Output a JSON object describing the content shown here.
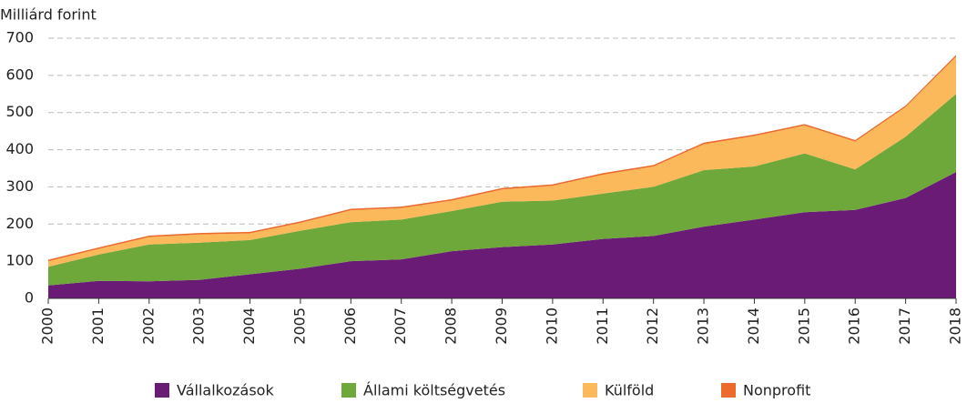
{
  "chart_data": {
    "type": "stacked_area",
    "y_axis_label": "Milliárd forint",
    "categories": [
      "2000",
      "2001",
      "2002",
      "2003",
      "2004",
      "2005",
      "2006",
      "2007",
      "2008",
      "2009",
      "2010",
      "2011",
      "2012",
      "2013",
      "2014",
      "2015",
      "2016",
      "2017",
      "2018"
    ],
    "series": [
      {
        "name": "Vállalkozások",
        "color": "#6a1b76",
        "values": [
          35,
          47,
          46,
          50,
          65,
          80,
          100,
          105,
          127,
          138,
          145,
          160,
          168,
          193,
          212,
          232,
          238,
          270,
          340
        ]
      },
      {
        "name": "Állami költségvetés",
        "color": "#6fa83a",
        "values": [
          50,
          71,
          99,
          100,
          92,
          102,
          105,
          107,
          108,
          122,
          118,
          122,
          132,
          152,
          143,
          158,
          109,
          165,
          210
        ]
      },
      {
        "name": "Külföld",
        "color": "#fbb95c",
        "values": [
          15,
          15,
          20,
          22,
          18,
          21,
          32,
          31,
          28,
          33,
          40,
          51,
          55,
          70,
          82,
          75,
          75,
          80,
          100
        ]
      },
      {
        "name": "Nonprofit",
        "color": "#ec6a2b",
        "values": [
          4,
          4,
          4,
          4,
          4,
          4,
          4,
          4,
          4,
          4,
          4,
          4,
          4,
          4,
          4,
          4,
          4,
          4,
          5
        ]
      }
    ],
    "ylim": [
      0,
      700
    ],
    "yticks": [
      0,
      100,
      200,
      300,
      400,
      500,
      600,
      700
    ],
    "grid": true,
    "legend": "bottom"
  }
}
